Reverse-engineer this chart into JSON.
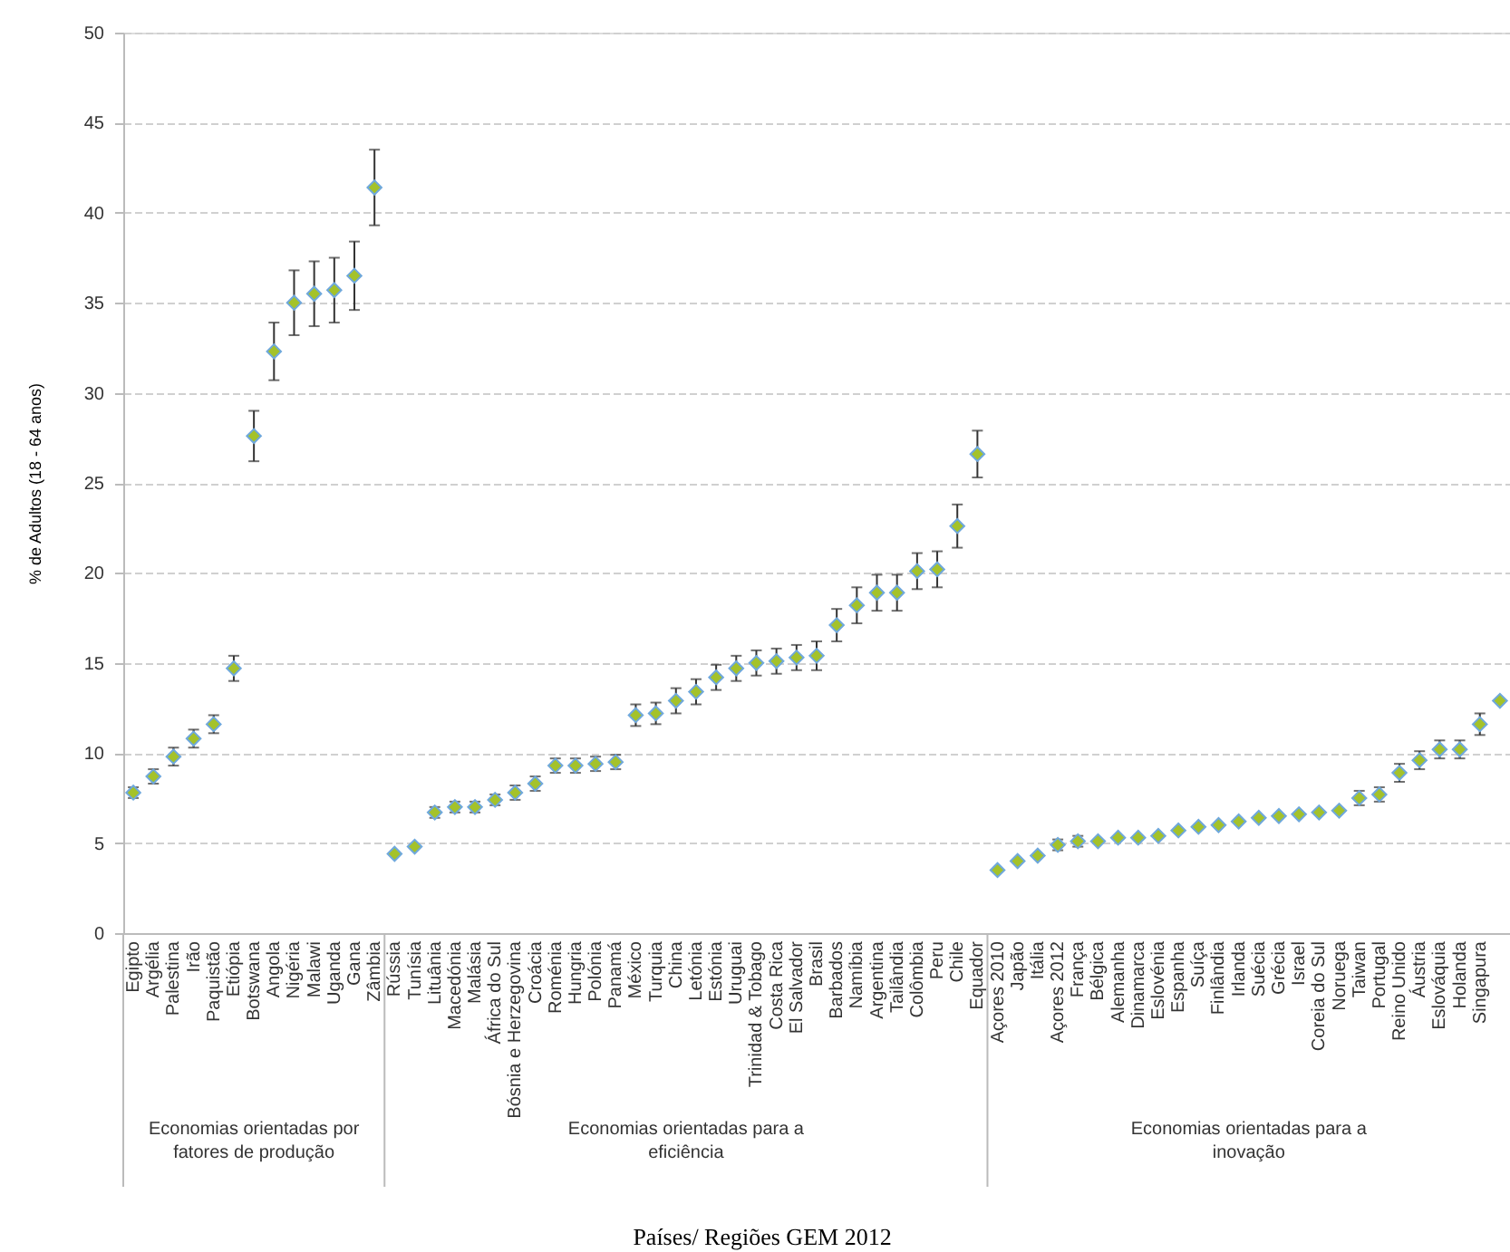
{
  "chart_data": {
    "type": "scatter",
    "marker": "diamond",
    "grid": "y",
    "xlabel": "Países/ Regiões GEM 2012",
    "ylabel": "% de Adultos (18 - 64 anos)",
    "ylim": [
      0,
      50
    ],
    "yticks": [
      0,
      5,
      10,
      15,
      20,
      25,
      30,
      35,
      40,
      45,
      50
    ],
    "annotations": [
      "Economias orientadas por fatores de produção",
      "Economias orientadas para a eficiência",
      "Economias orientadas para a inovação"
    ],
    "categories": [
      "Egipto",
      "Argélia",
      "Palestina",
      "Irão",
      "Paquistão",
      "Etiópia",
      "Botswana",
      "Angola",
      "Nigéria",
      "Malawi",
      "Uganda",
      "Gana",
      "Zâmbia",
      "Rússia",
      "Tunísia",
      "Lituânia",
      "Macedónia",
      "Malásia",
      "África do Sul",
      "Bósnia e Herzegovina",
      "Croácia",
      "Roménia",
      "Hungria",
      "Polónia",
      "Panamá",
      "México",
      "Turquia",
      "China",
      "Letónia",
      "Estónia",
      "Uruguai",
      "Trinidad & Tobago",
      "Costa Rica",
      "El Salvador",
      "Brasil",
      "Barbados",
      "Namíbia",
      "Argentina",
      "Tailândia",
      "Colômbia",
      "Peru",
      "Chile",
      "Equador",
      "Açores 2010",
      "Japão",
      "Itália",
      "Açores 2012",
      "França",
      "Bélgica",
      "Alemanha",
      "Dinamarca",
      "Eslovénia",
      "Espanha",
      "Suíça",
      "Finlândia",
      "Irlanda",
      "Suécia",
      "Grécia",
      "Israel",
      "Coreia do Sul",
      "Noruega",
      "Taiwan",
      "Portugal",
      "Reino Unido",
      "Áustria",
      "Eslováquia",
      "Holanda",
      "Singapura",
      null
    ],
    "series": [
      {
        "color": "#a4c22a",
        "values": [
          7.8,
          8.7,
          9.8,
          10.8,
          11.6,
          14.7,
          27.6,
          32.3,
          35.0,
          35.5,
          35.7,
          36.5,
          41.4,
          4.4,
          4.8,
          6.7,
          7.0,
          7.0,
          7.4,
          7.8,
          8.3,
          9.3,
          9.3,
          9.4,
          9.5,
          12.1,
          12.2,
          12.9,
          13.4,
          14.2,
          14.7,
          15.0,
          15.1,
          15.3,
          15.4,
          17.1,
          18.2,
          18.9,
          18.9,
          20.1,
          20.2,
          22.6,
          26.6,
          3.5,
          4.0,
          4.3,
          4.9,
          5.1,
          5.1,
          5.3,
          5.3,
          5.4,
          5.7,
          5.9,
          6.0,
          6.2,
          6.4,
          6.5,
          6.6,
          6.7,
          6.8,
          7.5,
          7.7,
          8.9,
          9.6,
          10.2,
          10.2,
          11.6,
          12.9
        ],
        "errors": [
          0.3,
          0.4,
          0.5,
          0.5,
          0.5,
          0.7,
          1.4,
          1.6,
          1.8,
          1.8,
          1.8,
          1.9,
          2.1,
          null,
          null,
          0.3,
          0.3,
          0.3,
          0.3,
          0.4,
          0.4,
          0.4,
          0.4,
          0.4,
          0.4,
          0.6,
          0.6,
          0.7,
          0.7,
          0.7,
          0.7,
          0.7,
          0.7,
          0.7,
          0.8,
          0.9,
          1.0,
          1.0,
          1.0,
          1.0,
          1.0,
          1.2,
          1.3,
          null,
          null,
          null,
          0.3,
          0.3,
          null,
          null,
          null,
          null,
          null,
          null,
          null,
          null,
          null,
          null,
          null,
          null,
          null,
          0.4,
          0.4,
          0.5,
          0.5,
          0.5,
          0.5,
          0.6,
          null
        ]
      }
    ]
  }
}
